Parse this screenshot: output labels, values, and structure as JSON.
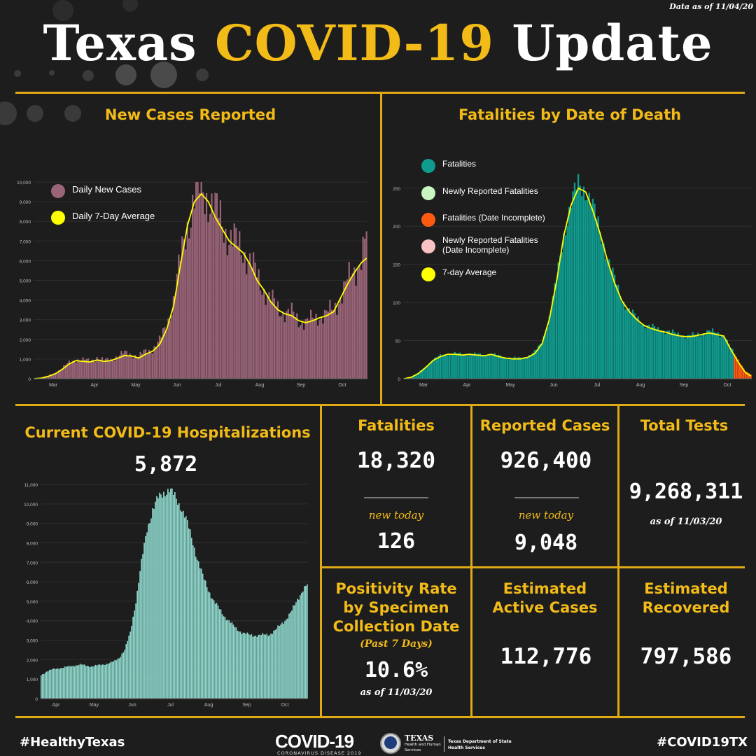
{
  "header": {
    "as_of": "Data as of 11/04/20",
    "title_part1": "Texas",
    "title_part2": "COVID-19",
    "title_part3": "Update"
  },
  "colors": {
    "gold": "#f2bb18",
    "cases_bar": "#9a6478",
    "fatalities_bar": "#0f9c8f",
    "incomplete": "#ff5a12",
    "hosp_bar": "#8ed7cc",
    "average_line": "#ffff00"
  },
  "panels": {
    "new_cases_title": "New Cases Reported",
    "fatalities_chart_title": "Fatalities by Date of Death",
    "hosp_title": "Current COVID-19 Hospitalizations",
    "hosp_value": "5,872"
  },
  "stats": {
    "fatalities": {
      "label": "Fatalities",
      "value": "18,320",
      "new_label": "new today",
      "new_value": "126"
    },
    "cases": {
      "label": "Reported Cases",
      "value": "926,400",
      "new_label": "new today",
      "new_value": "9,048"
    },
    "tests": {
      "label": "Total Tests",
      "value": "9,268,311",
      "as_of": "as of 11/03/20"
    },
    "positivity": {
      "label_line1": "Positivity Rate",
      "label_line2": "by Specimen",
      "label_line3": "Collection Date",
      "sub": "(Past 7 Days)",
      "value": "10.6%",
      "as_of": "as of 11/03/20"
    },
    "active": {
      "label_line1": "Estimated",
      "label_line2": "Active Cases",
      "value": "112,776"
    },
    "recovered": {
      "label_line1": "Estimated",
      "label_line2": "Recovered",
      "value": "797,586"
    }
  },
  "footer": {
    "left": "#HealthyTexas",
    "right": "#COVID19TX",
    "logo_main": "COVID-19",
    "logo_sub": "CORONAVIRUS DISEASE 2019",
    "hhs_line1": "TEXAS",
    "hhs_line2": "Health and Human",
    "hhs_line3": "Services",
    "dshs_line1": "Texas Department of State",
    "dshs_line2": "Health Services"
  },
  "chart_data": [
    {
      "type": "bar",
      "title": "New Cases Reported",
      "x_labels": [
        "Mar",
        "Apr",
        "May",
        "Jun",
        "Jul",
        "Aug",
        "Sep",
        "Oct"
      ],
      "ylim": [
        0,
        10000
      ],
      "y_ticks": [
        "0",
        "1,000",
        "2,000",
        "3,000",
        "4,000",
        "5,000",
        "6,000",
        "7,000",
        "8,000",
        "9,000",
        "10,000"
      ],
      "series": [
        {
          "name": "Daily New Cases",
          "values": [
            10,
            60,
            150,
            300,
            550,
            800,
            1000,
            950,
            900,
            1100,
            900,
            1000,
            1150,
            1300,
            1250,
            1100,
            1400,
            1500,
            1900,
            2700,
            4000,
            6000,
            7900,
            9200,
            9600,
            9300,
            8500,
            8000,
            7200,
            6900,
            6600,
            6000,
            5200,
            4600,
            4000,
            3600,
            3400,
            3300,
            3000,
            2900,
            3000,
            3200,
            3300,
            3500,
            4200,
            4900,
            5500,
            6200,
            7500
          ]
        },
        {
          "name": "Daily 7-Day Average",
          "values": [
            0,
            30,
            120,
            250,
            480,
            750,
            920,
            880,
            850,
            950,
            880,
            920,
            1050,
            1180,
            1150,
            1050,
            1250,
            1400,
            1750,
            2500,
            3700,
            5800,
            7800,
            9000,
            9400,
            9000,
            8200,
            7600,
            7000,
            6700,
            6400,
            5800,
            5000,
            4500,
            3900,
            3500,
            3300,
            3200,
            2950,
            2850,
            2950,
            3100,
            3200,
            3400,
            4100,
            4800,
            5400,
            5900,
            6200
          ]
        }
      ]
    },
    {
      "type": "bar",
      "title": "Fatalities by Date of Death",
      "x_labels": [
        "Mar",
        "Apr",
        "May",
        "Jun",
        "Jul",
        "Aug",
        "Sep",
        "Oct"
      ],
      "y_ticks": [
        "0",
        "50",
        "100",
        "150",
        "200",
        "250"
      ],
      "ylim": [
        0,
        270
      ],
      "legend": [
        "Fatalities",
        "Newly Reported Fatalities",
        "Fatalities (Date Incomplete)",
        "Newly Reported Fatalities (Date Incomplete)",
        "7-day Average"
      ],
      "series": [
        {
          "name": "Fatalities",
          "values": [
            0,
            2,
            8,
            16,
            25,
            30,
            33,
            33,
            32,
            33,
            32,
            31,
            33,
            30,
            28,
            27,
            27,
            29,
            35,
            48,
            80,
            130,
            190,
            230,
            255,
            250,
            225,
            195,
            160,
            130,
            105,
            90,
            80,
            72,
            68,
            65,
            63,
            60,
            58,
            56,
            57,
            60,
            62,
            60,
            58,
            40,
            25,
            10,
            4
          ]
        },
        {
          "name": "7-day Average",
          "values": [
            0,
            2,
            7,
            15,
            24,
            29,
            32,
            32,
            31,
            32,
            31,
            30,
            32,
            29,
            27,
            26,
            26,
            28,
            33,
            46,
            78,
            128,
            188,
            228,
            250,
            245,
            220,
            190,
            155,
            125,
            102,
            88,
            78,
            70,
            66,
            63,
            61,
            58,
            56,
            55,
            56,
            58,
            60,
            58,
            56,
            38,
            22,
            8,
            2
          ]
        }
      ]
    },
    {
      "type": "bar",
      "title": "Current COVID-19 Hospitalizations",
      "x_labels": [
        "Apr",
        "May",
        "Jun",
        "Jul",
        "Aug",
        "Sep",
        "Oct"
      ],
      "y_ticks": [
        "0",
        "1,000",
        "2,000",
        "3,000",
        "4,000",
        "5,000",
        "6,000",
        "7,000",
        "8,000",
        "9,000",
        "10,000",
        "11,000"
      ],
      "ylim": [
        0,
        11000
      ],
      "series": [
        {
          "name": "Hospitalizations",
          "values": [
            1200,
            1400,
            1500,
            1550,
            1600,
            1650,
            1700,
            1750,
            1700,
            1650,
            1700,
            1750,
            1800,
            1900,
            2100,
            2500,
            3400,
            5000,
            7000,
            8700,
            9700,
            10300,
            10600,
            10700,
            10400,
            9900,
            9200,
            8300,
            7200,
            6300,
            5600,
            5000,
            4600,
            4200,
            3900,
            3600,
            3400,
            3300,
            3250,
            3250,
            3280,
            3300,
            3500,
            3800,
            4100,
            4500,
            5100,
            5600,
            5900
          ]
        }
      ]
    }
  ]
}
